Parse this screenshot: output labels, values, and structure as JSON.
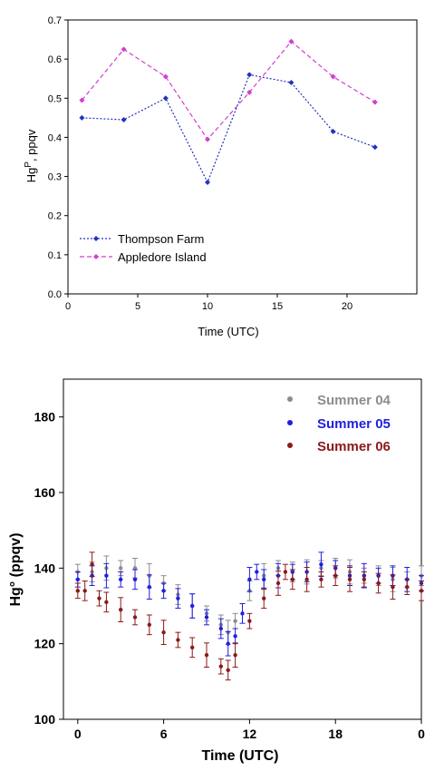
{
  "chart_data": [
    {
      "type": "line",
      "xlabel": "Time (UTC)",
      "ylabel": "Hg",
      "ylabel_sup": "P",
      "ylabel_unit": ", ppqv",
      "xlim": [
        0,
        25
      ],
      "ylim": [
        0.0,
        0.7
      ],
      "xticks": [
        "0",
        "5",
        "10",
        "15",
        "20"
      ],
      "xtick_values": [
        0,
        5,
        10,
        15,
        20
      ],
      "yticks": [
        "0.0",
        "0.1",
        "0.2",
        "0.3",
        "0.4",
        "0.5",
        "0.6",
        "0.7"
      ],
      "ytick_values": [
        0.0,
        0.1,
        0.2,
        0.3,
        0.4,
        0.5,
        0.6,
        0.7
      ],
      "x": [
        1,
        4,
        7,
        10,
        13,
        16,
        19,
        22
      ],
      "legend_position": "bottom-left",
      "series": [
        {
          "name": "Thompson Farm",
          "color": "#2233bb",
          "values": [
            0.45,
            0.445,
            0.5,
            0.285,
            0.56,
            0.54,
            0.415,
            0.375
          ]
        },
        {
          "name": "Appledore Island",
          "color": "#d03fd0",
          "values": [
            0.495,
            0.625,
            0.555,
            0.395,
            0.515,
            0.645,
            0.555,
            0.49
          ]
        }
      ]
    },
    {
      "type": "scatter",
      "xlabel": "Time (UTC)",
      "ylabel": "Hg° (ppqv)",
      "xlim": [
        -1,
        24
      ],
      "ylim": [
        100,
        190
      ],
      "xticks": [
        "0",
        "6",
        "12",
        "18",
        "0"
      ],
      "xtick_values": [
        0,
        6,
        12,
        18,
        24
      ],
      "yticks": [
        "100",
        "120",
        "140",
        "160",
        "180"
      ],
      "ytick_values": [
        100,
        120,
        140,
        160,
        180
      ],
      "legend_position": "top-right",
      "error_bars": true,
      "series": [
        {
          "name": "Summer 04",
          "color": "#8c8c8c",
          "x": [
            0,
            1,
            2,
            3,
            4,
            5,
            6,
            7,
            8,
            9,
            10,
            10.5,
            11,
            12,
            13,
            14,
            15,
            16,
            17,
            18,
            19,
            20,
            21,
            22,
            23,
            24
          ],
          "values": [
            139,
            139,
            140,
            140,
            140,
            138,
            136,
            133,
            130,
            128,
            125,
            123,
            126,
            134,
            138,
            140,
            139,
            139,
            140,
            140,
            139,
            138,
            138,
            137,
            137,
            138
          ]
        },
        {
          "name": "Summer 05",
          "color": "#1f1fe0",
          "x": [
            0,
            1,
            2,
            3,
            4,
            5,
            6,
            7,
            8,
            9,
            10,
            10.5,
            11,
            11.5,
            12,
            12.5,
            13,
            14,
            15,
            16,
            17,
            18,
            19,
            20,
            21,
            22,
            23,
            24
          ],
          "values": [
            137,
            138,
            138,
            137,
            137,
            135,
            134,
            132,
            130,
            127,
            124,
            120,
            122,
            128,
            137,
            139,
            137,
            138,
            139,
            139,
            141,
            140,
            138,
            138,
            138,
            138,
            137,
            136
          ]
        },
        {
          "name": "Summer 06",
          "color": "#8b1a1a",
          "x": [
            0,
            0.5,
            1,
            1.5,
            2,
            3,
            4,
            5,
            6,
            7,
            8,
            9,
            10,
            10.5,
            11,
            12,
            13,
            14,
            14.5,
            15,
            16,
            17,
            18,
            19,
            20,
            21,
            22,
            23,
            24
          ],
          "values": [
            134,
            134,
            141,
            132,
            131,
            129,
            127,
            125,
            123,
            121,
            119,
            117,
            114,
            113,
            117,
            126,
            132,
            136,
            139,
            137,
            137,
            137,
            138,
            137,
            137,
            136,
            135,
            135,
            134
          ]
        }
      ]
    }
  ]
}
